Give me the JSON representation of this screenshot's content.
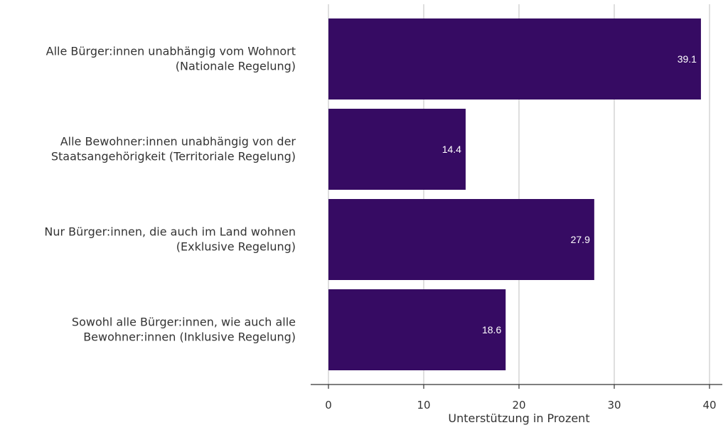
{
  "chart_data": {
    "type": "bar",
    "orientation": "horizontal",
    "categories": [
      [
        "Alle Bürger:innen unabhängig vom Wohnort",
        "(Nationale Regelung)"
      ],
      [
        "Alle Bewohner:innen unabhängig von der",
        "Staatsangehörigkeit (Territoriale Regelung)"
      ],
      [
        "Nur Bürger:innen, die auch im Land wohnen",
        "(Exklusive Regelung)"
      ],
      [
        "Sowohl alle Bürger:innen, wie auch alle",
        "Bewohner:innen (Inklusive Regelung)"
      ]
    ],
    "values": [
      39.1,
      14.4,
      27.9,
      18.6
    ],
    "data_labels": [
      "39.1",
      "14.4",
      "27.9",
      "18.6"
    ],
    "xlabel": "Unterstützung in Prozent",
    "ylabel": "",
    "xlim": [
      0,
      40
    ],
    "xticks": [
      0,
      10,
      20,
      30,
      40
    ],
    "grid": "vertical",
    "bar_color": "#360b63",
    "grid_color": "#bfbfbf",
    "label_color": "#ffffff"
  }
}
